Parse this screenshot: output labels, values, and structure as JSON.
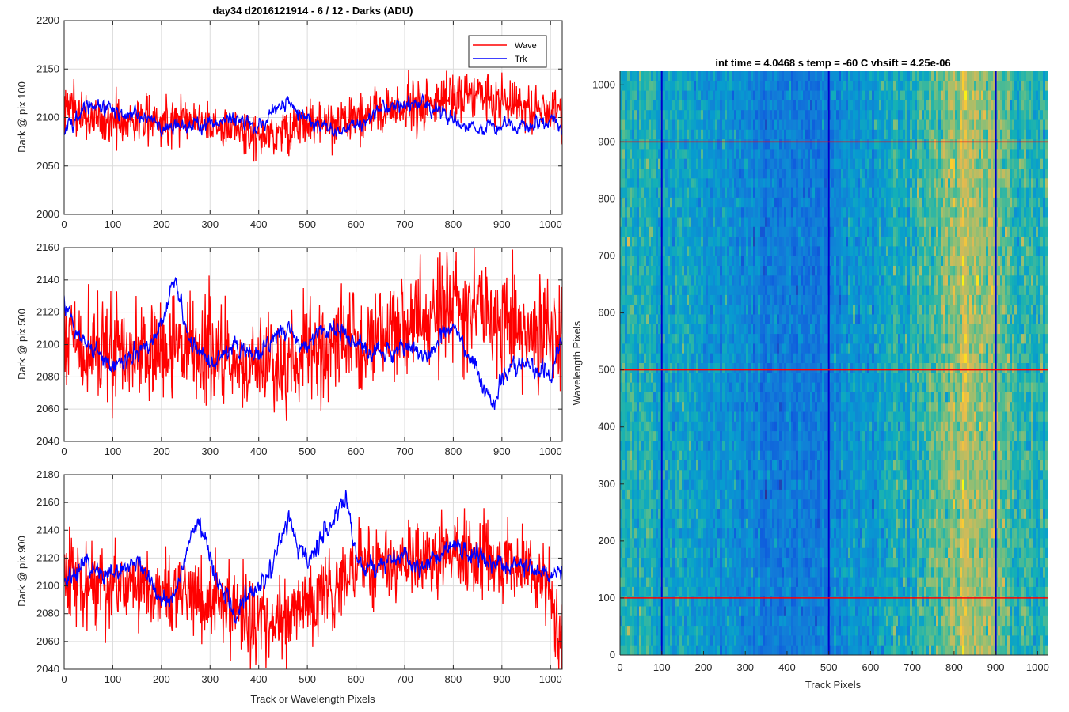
{
  "chart_data": [
    {
      "type": "line",
      "title": "day34 d2016121914 - 6 / 12 - Darks (ADU)",
      "ylabel": "Dark @ pix 100",
      "xlabel": "",
      "xlim": [
        0,
        1024
      ],
      "ylim": [
        2000,
        2200
      ],
      "xticks": [
        0,
        100,
        200,
        300,
        400,
        500,
        600,
        700,
        800,
        900,
        1000
      ],
      "yticks": [
        2000,
        2050,
        2100,
        2150,
        2200
      ],
      "grid": true,
      "legend": {
        "position": "top-right",
        "entries": [
          "Wave",
          "Trk"
        ]
      },
      "series": [
        {
          "name": "Wave",
          "color": "#ff0000",
          "x": [
            0,
            50,
            100,
            150,
            200,
            250,
            300,
            350,
            400,
            450,
            500,
            550,
            600,
            650,
            700,
            750,
            800,
            850,
            900,
            950,
            1000,
            1024
          ],
          "mean": [
            2115,
            2098,
            2095,
            2098,
            2097,
            2100,
            2093,
            2088,
            2082,
            2085,
            2096,
            2090,
            2100,
            2106,
            2110,
            2116,
            2120,
            2124,
            2118,
            2112,
            2105,
            2112
          ],
          "spread": 12
        },
        {
          "name": "Trk",
          "color": "#0000ff",
          "x": [
            0,
            30,
            60,
            100,
            150,
            200,
            250,
            300,
            350,
            400,
            430,
            460,
            500,
            550,
            600,
            650,
            700,
            750,
            800,
            850,
            900,
            950,
            1000,
            1024
          ],
          "mean": [
            2085,
            2105,
            2115,
            2105,
            2100,
            2092,
            2090,
            2095,
            2100,
            2088,
            2105,
            2118,
            2098,
            2085,
            2093,
            2108,
            2115,
            2113,
            2095,
            2088,
            2090,
            2092,
            2098,
            2090
          ],
          "spread": 5
        }
      ]
    },
    {
      "type": "line",
      "title": "",
      "ylabel": "Dark @ pix 500",
      "xlabel": "",
      "xlim": [
        0,
        1024
      ],
      "ylim": [
        2040,
        2160
      ],
      "xticks": [
        0,
        100,
        200,
        300,
        400,
        500,
        600,
        700,
        800,
        900,
        1000
      ],
      "yticks": [
        2040,
        2060,
        2080,
        2100,
        2120,
        2140,
        2160
      ],
      "grid": true,
      "series": [
        {
          "name": "Wave",
          "color": "#ff0000",
          "x": [
            0,
            50,
            100,
            150,
            200,
            250,
            300,
            350,
            400,
            450,
            500,
            550,
            600,
            650,
            700,
            750,
            800,
            850,
            900,
            950,
            1000,
            1024
          ],
          "mean": [
            2110,
            2095,
            2092,
            2096,
            2094,
            2100,
            2092,
            2088,
            2082,
            2086,
            2100,
            2098,
            2100,
            2108,
            2112,
            2116,
            2125,
            2120,
            2112,
            2108,
            2102,
            2110
          ],
          "spread": 16
        },
        {
          "name": "Trk",
          "color": "#0000ff",
          "x": [
            0,
            20,
            50,
            100,
            150,
            180,
            210,
            225,
            240,
            260,
            300,
            350,
            400,
            450,
            500,
            550,
            600,
            650,
            700,
            750,
            800,
            850,
            880,
            900,
            950,
            1000,
            1024
          ],
          "mean": [
            2130,
            2110,
            2100,
            2088,
            2092,
            2100,
            2120,
            2145,
            2122,
            2100,
            2090,
            2100,
            2092,
            2110,
            2098,
            2112,
            2103,
            2093,
            2098,
            2095,
            2112,
            2085,
            2062,
            2080,
            2090,
            2080,
            2105
          ],
          "spread": 4
        }
      ]
    },
    {
      "type": "line",
      "title": "",
      "ylabel": "Dark @ pix 900",
      "xlabel": "Track or Wavelength Pixels",
      "xlim": [
        0,
        1024
      ],
      "ylim": [
        2040,
        2180
      ],
      "xticks": [
        0,
        100,
        200,
        300,
        400,
        500,
        600,
        700,
        800,
        900,
        1000
      ],
      "yticks": [
        2040,
        2060,
        2080,
        2100,
        2120,
        2140,
        2160,
        2180
      ],
      "grid": true,
      "series": [
        {
          "name": "Wave",
          "color": "#ff0000",
          "x": [
            0,
            50,
            100,
            150,
            200,
            250,
            300,
            350,
            400,
            450,
            500,
            550,
            600,
            650,
            700,
            750,
            800,
            850,
            900,
            950,
            1000,
            1010,
            1024
          ],
          "mean": [
            2110,
            2100,
            2098,
            2096,
            2095,
            2098,
            2090,
            2080,
            2075,
            2072,
            2088,
            2098,
            2110,
            2115,
            2117,
            2120,
            2123,
            2119,
            2117,
            2112,
            2100,
            2060,
            2060
          ],
          "spread": 14
        },
        {
          "name": "Trk",
          "color": "#0000ff",
          "x": [
            0,
            50,
            100,
            150,
            200,
            230,
            260,
            280,
            310,
            350,
            400,
            430,
            460,
            490,
            520,
            560,
            580,
            600,
            620,
            660,
            700,
            750,
            800,
            850,
            900,
            950,
            1000,
            1024
          ],
          "mean": [
            2105,
            2112,
            2108,
            2118,
            2090,
            2095,
            2140,
            2145,
            2110,
            2080,
            2100,
            2112,
            2150,
            2120,
            2128,
            2150,
            2165,
            2120,
            2112,
            2118,
            2120,
            2115,
            2130,
            2120,
            2115,
            2112,
            2105,
            2110
          ],
          "spread": 5
        }
      ]
    },
    {
      "type": "heatmap",
      "title": "int time = 4.0468 s    temp = -60 C    vhsift = 4.25e-06",
      "xlabel": "Track Pixels",
      "ylabel": "Wavelength Pixels",
      "xlim": [
        0,
        1024
      ],
      "ylim": [
        0,
        1024
      ],
      "xticks": [
        0,
        100,
        200,
        300,
        400,
        500,
        600,
        700,
        800,
        900,
        1000
      ],
      "yticks": [
        0,
        100,
        200,
        300,
        400,
        500,
        600,
        700,
        800,
        900,
        1000
      ],
      "colormap": "parula",
      "column_profile": {
        "x": [
          0,
          100,
          200,
          300,
          350,
          400,
          450,
          500,
          550,
          600,
          650,
          700,
          750,
          800,
          850,
          900,
          950,
          1024
        ],
        "level": [
          0.55,
          0.5,
          0.45,
          0.35,
          0.3,
          0.3,
          0.28,
          0.32,
          0.4,
          0.45,
          0.5,
          0.55,
          0.6,
          0.72,
          0.78,
          0.7,
          0.58,
          0.55
        ]
      },
      "vertical_lines": {
        "x": [
          100,
          500,
          900
        ],
        "color": "#0000cc"
      },
      "horizontal_lines": {
        "y": [
          100,
          500,
          900
        ],
        "color": "#ff0000"
      }
    }
  ]
}
